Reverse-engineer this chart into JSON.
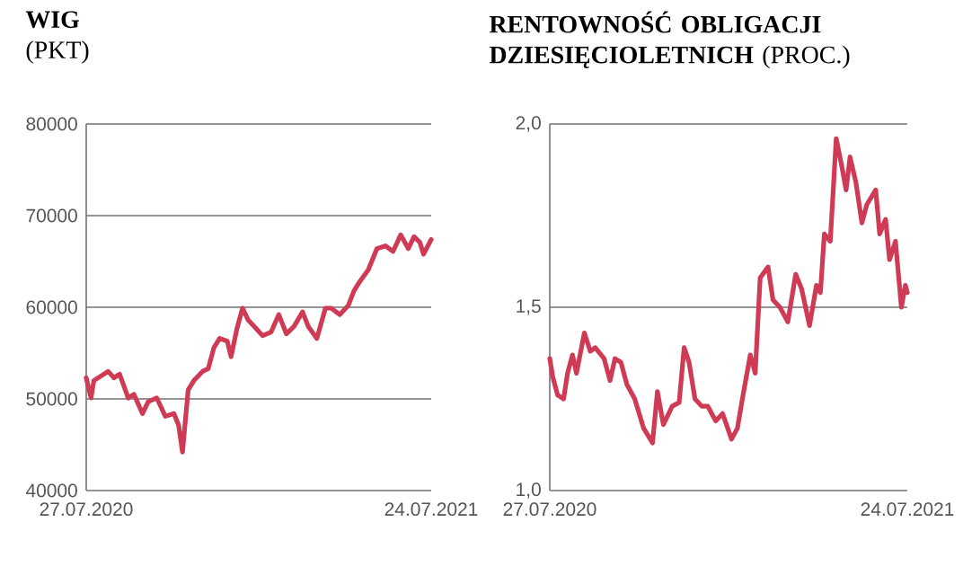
{
  "chart_data": [
    {
      "type": "line",
      "title": "WIG",
      "subtitle": "(PKT)",
      "color": "#cf3a55",
      "grid": "y",
      "x": [
        "2020-07-27",
        "2020-08-01",
        "2020-08-04",
        "2020-08-19",
        "2020-08-25",
        "2020-08-31",
        "2020-09-09",
        "2020-09-15",
        "2020-09-24",
        "2020-09-30",
        "2020-10-09",
        "2020-10-18",
        "2020-10-27",
        "2020-11-01",
        "2020-11-05",
        "2020-11-11",
        "2020-11-17",
        "2020-11-26",
        "2020-12-02",
        "2020-12-08",
        "2020-12-14",
        "2020-12-22",
        "2020-12-26",
        "2021-01-01",
        "2021-01-07",
        "2021-01-13",
        "2021-01-22",
        "2021-01-28",
        "2021-02-06",
        "2021-02-14",
        "2021-02-22",
        "2021-03-02",
        "2021-03-11",
        "2021-03-17",
        "2021-03-26",
        "2021-04-04",
        "2021-04-10",
        "2021-04-19",
        "2021-04-28",
        "2021-05-04",
        "2021-05-10",
        "2021-05-19",
        "2021-05-28",
        "2021-06-06",
        "2021-06-14",
        "2021-06-22",
        "2021-06-30",
        "2021-07-06",
        "2021-07-12",
        "2021-07-16",
        "2021-07-24"
      ],
      "values": [
        52300,
        50100,
        52000,
        53000,
        52300,
        52700,
        50100,
        50500,
        48400,
        49700,
        50100,
        48100,
        48400,
        47100,
        44200,
        51000,
        52000,
        53000,
        53300,
        55600,
        56600,
        56300,
        54600,
        57600,
        59900,
        58600,
        57600,
        56900,
        57300,
        59200,
        57100,
        57900,
        59500,
        57900,
        56600,
        59900,
        59900,
        59200,
        60200,
        61800,
        62800,
        64100,
        66400,
        66700,
        66100,
        67900,
        66400,
        67700,
        67100,
        65800,
        67400
      ],
      "xlim": [
        "2020-07-27",
        "2021-07-24"
      ],
      "xticks": [
        {
          "value": "2020-07-27",
          "label": "27.07.2020"
        },
        {
          "value": "2021-07-24",
          "label": "24.07.2021"
        }
      ],
      "ylim": [
        40000,
        80000
      ],
      "yticks": [
        40000,
        50000,
        60000,
        70000,
        80000
      ]
    },
    {
      "type": "line",
      "title": "RENTOWNOŚĆ OBLIGACJI DZIESIĘCIOLETNICH",
      "subtitle": "(PROC.)",
      "color": "#cf3a55",
      "grid": "y",
      "x": [
        "2020-07-27",
        "2020-07-30",
        "2020-08-04",
        "2020-08-10",
        "2020-08-14",
        "2020-08-19",
        "2020-08-23",
        "2020-08-31",
        "2020-09-06",
        "2020-09-11",
        "2020-09-20",
        "2020-09-26",
        "2020-10-01",
        "2020-10-07",
        "2020-10-13",
        "2020-10-21",
        "2020-10-30",
        "2020-11-08",
        "2020-11-13",
        "2020-11-19",
        "2020-11-28",
        "2020-12-05",
        "2020-12-10",
        "2020-12-15",
        "2020-12-21",
        "2020-12-28",
        "2021-01-03",
        "2021-01-11",
        "2021-01-18",
        "2021-01-27",
        "2021-02-02",
        "2021-02-07",
        "2021-02-15",
        "2021-02-20",
        "2021-02-25",
        "2021-03-05",
        "2021-03-10",
        "2021-03-17",
        "2021-03-25",
        "2021-04-02",
        "2021-04-08",
        "2021-04-16",
        "2021-04-23",
        "2021-04-27",
        "2021-05-01",
        "2021-05-07",
        "2021-05-13",
        "2021-05-19",
        "2021-05-23",
        "2021-05-27",
        "2021-06-02",
        "2021-06-08",
        "2021-06-13",
        "2021-06-22",
        "2021-06-26",
        "2021-07-02",
        "2021-07-06",
        "2021-07-12",
        "2021-07-18",
        "2021-07-22",
        "2021-07-24"
      ],
      "values": [
        1.36,
        1.31,
        1.26,
        1.25,
        1.32,
        1.37,
        1.32,
        1.43,
        1.38,
        1.39,
        1.36,
        1.3,
        1.36,
        1.35,
        1.29,
        1.25,
        1.17,
        1.13,
        1.27,
        1.18,
        1.23,
        1.24,
        1.39,
        1.35,
        1.25,
        1.23,
        1.23,
        1.19,
        1.21,
        1.14,
        1.17,
        1.25,
        1.37,
        1.32,
        1.58,
        1.61,
        1.52,
        1.5,
        1.46,
        1.59,
        1.55,
        1.45,
        1.56,
        1.54,
        1.7,
        1.68,
        1.96,
        1.88,
        1.82,
        1.91,
        1.84,
        1.73,
        1.78,
        1.82,
        1.7,
        1.74,
        1.63,
        1.68,
        1.5,
        1.56,
        1.54
      ],
      "xlim": [
        "2020-07-27",
        "2021-07-24"
      ],
      "xticks": [
        {
          "value": "2020-07-27",
          "label": "27.07.2020"
        },
        {
          "value": "2021-07-24",
          "label": "24.07.2021"
        }
      ],
      "ylim": [
        1.0,
        2.0
      ],
      "yticks": [
        {
          "value": 1.0,
          "label": "1,0"
        },
        {
          "value": 1.5,
          "label": "1,5"
        },
        {
          "value": 2.0,
          "label": "2,0"
        }
      ]
    }
  ]
}
